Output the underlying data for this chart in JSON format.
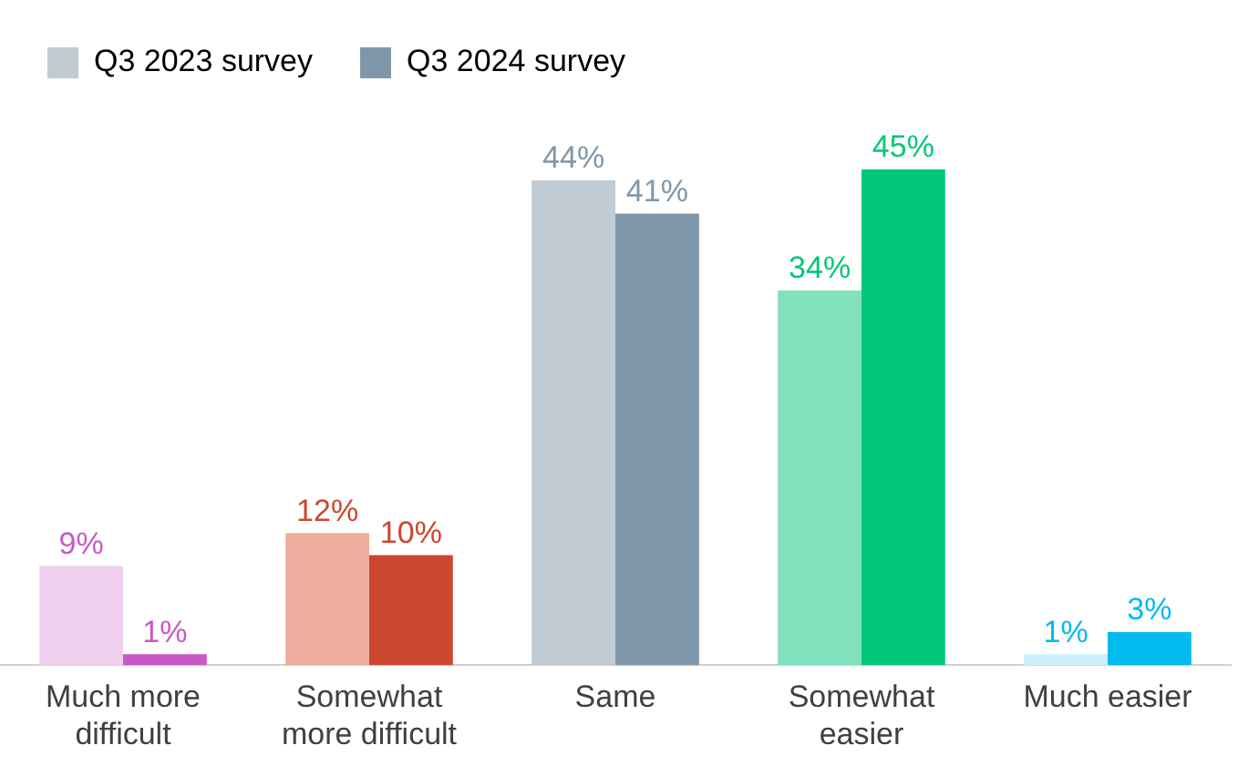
{
  "chart_data": {
    "type": "bar",
    "categories": [
      "Much more\ndifficult",
      "Somewhat\nmore difficult",
      "Same",
      "Somewhat\neasier",
      "Much easier"
    ],
    "series": [
      {
        "name": "Q3 2023 survey",
        "color": "#c0cbd3",
        "colors": [
          "#f0cfee",
          "#eeae9e",
          "#c0cbd3",
          "#82e2bd",
          "#cdeefb"
        ],
        "values": [
          9,
          12,
          44,
          34,
          1
        ],
        "value_labels": [
          "9%",
          "12%",
          "44%",
          "34%",
          "1%"
        ]
      },
      {
        "name": "Q3 2024 survey",
        "color": "#7f97aa",
        "colors": [
          "#c858c8",
          "#cc4630",
          "#7f97aa",
          "#00c878",
          "#00bbee"
        ],
        "values": [
          1,
          10,
          41,
          45,
          3
        ],
        "value_labels": [
          "1%",
          "10%",
          "41%",
          "45%",
          "3%"
        ]
      }
    ],
    "legend": "top left",
    "grid": false
  }
}
